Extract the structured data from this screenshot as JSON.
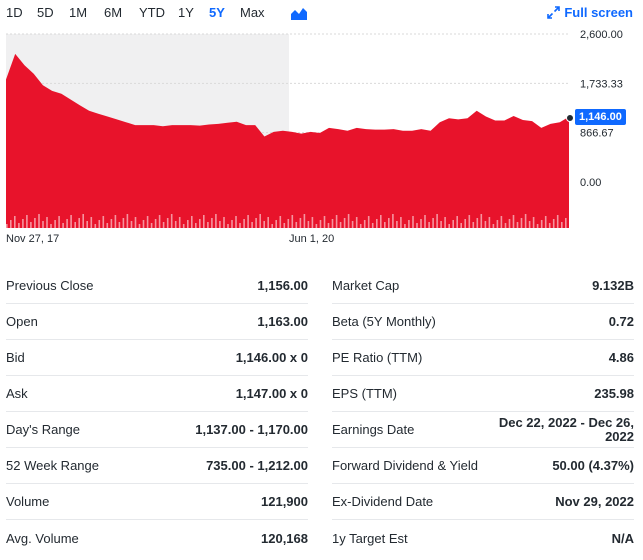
{
  "ranges": [
    "1D",
    "5D",
    "1M",
    "6M",
    "YTD",
    "1Y",
    "5Y",
    "Max"
  ],
  "active_range": "5Y",
  "fullscreen_label": "Full screen",
  "colors": {
    "accent": "#0f69ff",
    "area": "#e8132b",
    "text": "#232a31"
  },
  "chart_data": {
    "type": "area",
    "y_ticks": [
      "2,600.00",
      "1,733.33",
      "866.67",
      "0.00"
    ],
    "ylim": [
      0,
      2600
    ],
    "x_ticks": [
      "Nov 27, 17",
      "Jun 1, 20"
    ],
    "current_price_label": "1,146.00",
    "current_price": 1146,
    "x": [
      "2017-11",
      "2017-12",
      "2018-01",
      "2018-02",
      "2018-03",
      "2018-04",
      "2018-05",
      "2018-06",
      "2018-07",
      "2018-08",
      "2018-09",
      "2018-10",
      "2018-11",
      "2018-12",
      "2019-01",
      "2019-02",
      "2019-03",
      "2019-04",
      "2019-05",
      "2019-06",
      "2019-07",
      "2019-08",
      "2019-09",
      "2019-10",
      "2019-11",
      "2019-12",
      "2020-01",
      "2020-02",
      "2020-03",
      "2020-04",
      "2020-05",
      "2020-06",
      "2020-07",
      "2020-08",
      "2020-09",
      "2020-10",
      "2020-11",
      "2020-12",
      "2021-01",
      "2021-02",
      "2021-03",
      "2021-04",
      "2021-05",
      "2021-06",
      "2021-07",
      "2021-08",
      "2021-09",
      "2021-10",
      "2021-11",
      "2021-12",
      "2022-01",
      "2022-02",
      "2022-03",
      "2022-04",
      "2022-05",
      "2022-06",
      "2022-07",
      "2022-08",
      "2022-09",
      "2022-10",
      "2022-11",
      "2022-12"
    ],
    "values": [
      1800,
      2250,
      2050,
      1900,
      1700,
      1600,
      1550,
      1450,
      1350,
      1250,
      1200,
      1150,
      1100,
      1050,
      1000,
      1000,
      1000,
      980,
      1000,
      1000,
      1000,
      990,
      1010,
      1020,
      1040,
      1060,
      1000,
      1000,
      800,
      880,
      900,
      880,
      850,
      880,
      860,
      950,
      930,
      900,
      950,
      930,
      920,
      920,
      930,
      900,
      900,
      930,
      900,
      1050,
      1120,
      1100,
      1120,
      1250,
      1150,
      1080,
      1080,
      1160,
      1090,
      1070,
      950,
      1020,
      1050,
      1146
    ]
  },
  "stats_left": [
    {
      "label": "Previous Close",
      "value": "1,156.00"
    },
    {
      "label": "Open",
      "value": "1,163.00"
    },
    {
      "label": "Bid",
      "value": "1,146.00 x 0"
    },
    {
      "label": "Ask",
      "value": "1,147.00 x 0"
    },
    {
      "label": "Day's Range",
      "value": "1,137.00 - 1,170.00"
    },
    {
      "label": "52 Week Range",
      "value": "735.00 - 1,212.00"
    },
    {
      "label": "Volume",
      "value": "121,900"
    },
    {
      "label": "Avg. Volume",
      "value": "120,168"
    }
  ],
  "stats_right": [
    {
      "label": "Market Cap",
      "value": "9.132B"
    },
    {
      "label": "Beta (5Y Monthly)",
      "value": "0.72"
    },
    {
      "label": "PE Ratio (TTM)",
      "value": "4.86"
    },
    {
      "label": "EPS (TTM)",
      "value": "235.98"
    },
    {
      "label": "Earnings Date",
      "value": "Dec 22, 2022 - Dec 26, 2022"
    },
    {
      "label": "Forward Dividend & Yield",
      "value": "50.00 (4.37%)"
    },
    {
      "label": "Ex-Dividend Date",
      "value": "Nov 29, 2022"
    },
    {
      "label": "1y Target Est",
      "value": "N/A"
    }
  ]
}
